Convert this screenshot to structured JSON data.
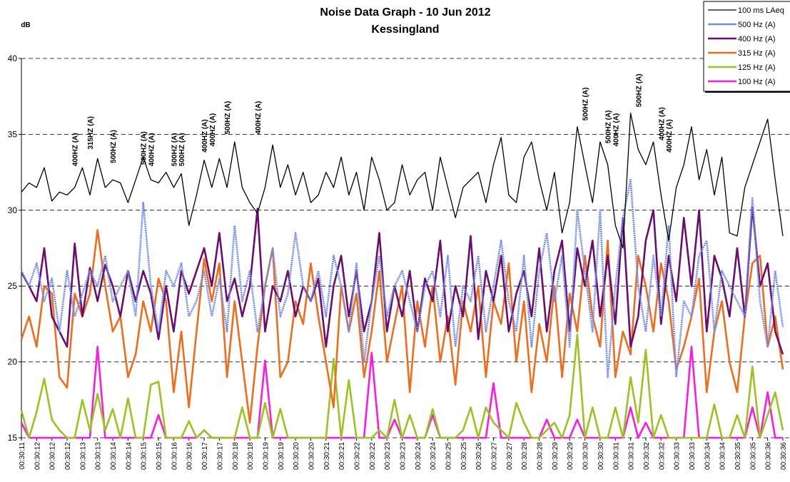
{
  "chart_data": {
    "type": "line",
    "title": "Noise Data Graph - 10 Jun 2012",
    "subtitle": "Kessingland",
    "y_label": "dB",
    "ylim": [
      15,
      40
    ],
    "yticks": [
      15,
      20,
      25,
      30,
      35,
      40
    ],
    "grid": true,
    "legend": "top-right",
    "categories": [
      "00:30:11",
      null,
      "00:30:12",
      null,
      "00:30:12",
      null,
      "00:30:12",
      null,
      "00:30:13",
      null,
      "00:30:13",
      null,
      "00:30:14",
      null,
      "00:30:14",
      null,
      "00:30:15",
      null,
      "00:30:15",
      null,
      "00:30:16",
      null,
      "00:30:16",
      null,
      "00:30:17",
      null,
      "00:30:17",
      null,
      "00:30:18",
      null,
      "00:30:18",
      null,
      "00:30:19",
      null,
      "00:30:19",
      null,
      "00:30:20",
      null,
      "00:30:20",
      null,
      "00:30:21",
      null,
      "00:30:21",
      null,
      "00:30:22",
      null,
      "00:30:22",
      null,
      "00:30:23",
      null,
      "00:30:23",
      null,
      "00:30:24",
      null,
      "00:30:24",
      null,
      "00:30:25",
      null,
      "00:30:25",
      null,
      "00:30:26",
      null,
      "00:30:27",
      null,
      "00:30:27",
      null,
      "00:30:28",
      null,
      "00:30:28",
      null,
      "00:30:29",
      null,
      "00:30:29",
      null,
      "00:30:30",
      null,
      "00:30:30",
      null,
      "00:30:31",
      null,
      "00:30:31",
      null,
      "00:30:32",
      null,
      "00:30:32",
      null,
      "00:30:33",
      null,
      "00:30:33",
      null,
      "00:30:34",
      null,
      "00:30:34",
      null,
      "00:30:35",
      null,
      "00:30:35",
      null,
      "00:30:36",
      null,
      "00:30:36"
    ],
    "series": [
      {
        "name": "100 ms LAeq",
        "color": "#000000",
        "values": [
          31.2,
          31.8,
          31.5,
          32.8,
          30.6,
          31.2,
          31.0,
          31.5,
          32.8,
          31.0,
          33.4,
          31.5,
          32.0,
          31.8,
          30.5,
          32.0,
          33.5,
          32.0,
          31.8,
          32.5,
          31.5,
          32.4,
          29.0,
          31.0,
          33.3,
          31.5,
          33.4,
          31.5,
          34.5,
          31.5,
          30.5,
          29.8,
          31.5,
          34.3,
          31.5,
          33.0,
          31.0,
          32.5,
          30.5,
          31.0,
          32.5,
          31.5,
          33.5,
          31.0,
          32.5,
          30.0,
          33.5,
          32.0,
          30.0,
          30.5,
          33.0,
          31.0,
          32.0,
          32.5,
          30.0,
          33.5,
          31.5,
          29.5,
          31.5,
          32.0,
          32.5,
          30.5,
          33.0,
          34.8,
          31.0,
          30.5,
          33.5,
          34.5,
          32.0,
          30.0,
          32.5,
          28.5,
          30.5,
          35.5,
          33.0,
          30.5,
          34.5,
          33.0,
          29.0,
          27.5,
          36.4,
          34.0,
          33.0,
          34.5,
          31.0,
          28.0,
          31.5,
          33.0,
          35.5,
          32.0,
          34.0,
          31.0,
          33.5,
          28.5,
          28.3,
          31.5,
          33.0,
          34.5,
          36.0,
          32.0,
          28.3
        ]
      },
      {
        "name": "500 Hz (A)",
        "color": "#6f8cf2",
        "values": [
          26,
          25,
          26.5,
          24,
          25.5,
          22,
          26,
          23,
          24.5,
          26,
          25,
          27,
          24,
          25,
          26,
          23,
          30.5,
          25,
          22,
          26,
          25,
          26.5,
          23,
          24,
          26,
          23,
          25.5,
          22,
          29,
          24,
          26,
          22,
          25,
          27.5,
          23,
          24.5,
          28.5,
          25,
          24,
          26,
          23,
          27,
          25,
          22,
          26.5,
          20,
          24,
          27,
          23,
          25,
          26,
          24,
          22,
          25,
          26,
          23,
          27,
          21,
          25,
          24,
          27,
          22,
          25,
          28,
          24,
          22,
          27,
          21,
          26,
          28.5,
          24,
          27,
          21,
          30,
          26,
          22,
          30,
          19,
          25,
          29.5,
          32,
          25,
          22,
          27,
          23,
          29,
          19,
          24,
          23,
          27,
          28,
          22,
          26,
          25,
          24,
          23,
          30.8,
          24,
          21,
          26,
          22.3
        ]
      },
      {
        "name": "400 Hz (A)",
        "color": "#6a0d6e",
        "values": [
          25.9,
          25,
          24,
          27.5,
          23,
          22,
          21,
          27.8,
          23,
          26.2,
          24,
          26.4,
          25,
          23,
          26,
          24,
          26,
          24.5,
          21.5,
          25,
          22,
          26,
          24.5,
          26,
          27.5,
          25,
          28.5,
          24,
          25.5,
          23,
          25,
          30.1,
          22,
          25,
          24,
          26,
          23,
          25,
          24,
          25.5,
          21,
          25,
          27,
          23,
          26,
          22,
          24,
          28.5,
          22,
          25,
          23,
          26,
          22,
          25.5,
          24,
          28,
          22,
          25,
          23,
          28.3,
          21.5,
          26,
          24,
          27,
          22,
          24.5,
          26,
          23,
          27.5,
          22,
          26,
          28,
          22,
          27.5,
          25,
          28,
          23,
          27,
          22.5,
          29.5,
          21,
          23,
          28,
          30,
          22.5,
          27,
          24,
          29.5,
          25,
          30,
          22,
          27,
          25.5,
          23,
          27.5,
          23,
          30.2,
          25,
          26.5,
          22,
          20.5
        ]
      },
      {
        "name": "315 Hz (A)",
        "color": "#f26b18",
        "values": [
          21.5,
          23,
          21,
          25,
          24.5,
          19,
          18.3,
          24.5,
          23,
          24.5,
          28.7,
          25,
          22,
          23,
          19,
          20.5,
          24,
          22,
          25.5,
          24,
          18,
          22,
          17,
          22,
          26.8,
          24,
          26.5,
          19,
          24,
          20,
          16,
          21,
          25,
          27.5,
          19,
          20,
          24,
          22.5,
          26.5,
          23,
          20,
          17,
          25,
          22,
          24.5,
          19,
          22,
          26,
          20,
          22.5,
          25,
          18,
          24,
          21,
          25,
          20,
          23,
          18.5,
          24,
          22,
          25,
          19,
          24,
          22.5,
          26.5,
          20,
          24,
          18,
          22.5,
          20,
          25,
          19,
          24.5,
          22,
          27,
          23,
          21,
          28,
          19,
          22,
          20.5,
          27,
          25,
          22,
          26.5,
          24,
          19.5,
          21,
          23,
          25.5,
          18,
          22,
          24,
          20,
          18,
          23,
          26.5,
          27,
          21,
          23,
          19.5
        ]
      },
      {
        "name": "125 Hz (A)",
        "color": "#99c41c",
        "values": [
          16.8,
          15,
          16.7,
          18.9,
          16.2,
          15.5,
          15,
          15,
          17.5,
          15.5,
          17.9,
          15.5,
          16.9,
          15,
          17.6,
          15,
          15,
          18.5,
          18.7,
          15,
          15,
          15,
          16.1,
          15,
          15.5,
          15,
          15,
          15,
          15,
          17,
          15,
          15,
          17.3,
          15,
          16.9,
          15,
          15,
          15,
          15,
          15,
          15,
          20.2,
          15,
          18.8,
          15,
          15,
          15,
          15.5,
          15,
          17.5,
          15,
          16.5,
          15,
          15,
          16.9,
          15,
          15,
          15,
          15.5,
          17,
          15,
          17,
          16,
          15.5,
          15,
          17.3,
          16,
          15,
          15,
          15.5,
          16,
          15,
          16.5,
          21.8,
          15,
          17,
          15,
          15,
          17,
          15,
          19,
          16,
          20.8,
          15,
          16.5,
          15,
          15,
          15,
          15,
          15,
          15,
          17.2,
          15,
          15,
          16.5,
          15,
          19.7,
          15,
          16.5,
          18,
          15.5
        ]
      },
      {
        "name": "100 Hz (A)",
        "color": "#ff1adb",
        "values": [
          16,
          15,
          15,
          15,
          15,
          15,
          15,
          15,
          15,
          15,
          21,
          15,
          15,
          15,
          15,
          15,
          15,
          15,
          16.5,
          15,
          15,
          15,
          15,
          15,
          15.5,
          15,
          15,
          15,
          15,
          15,
          15,
          15,
          20.1,
          15,
          15,
          15,
          15,
          15,
          15,
          15,
          15,
          15,
          15,
          15,
          15,
          15,
          20.6,
          15,
          15,
          16.2,
          15,
          15,
          15,
          15,
          16.5,
          15,
          15,
          15,
          15,
          15,
          15,
          15,
          18.6,
          15,
          15,
          15,
          15,
          15,
          15,
          16.2,
          15,
          15,
          15,
          16.2,
          15,
          15,
          15,
          15,
          15,
          15,
          17,
          15,
          16,
          15,
          15,
          15,
          15,
          15,
          21,
          15,
          15,
          15,
          15,
          15,
          15,
          15,
          17,
          15,
          18,
          15,
          15
        ]
      }
    ],
    "annotations": [
      {
        "text": "400HZ (A)",
        "x": 7,
        "y": 32.9
      },
      {
        "text": "315HZ (A)",
        "x": 9,
        "y": 34
      },
      {
        "text": "500HZ (A)",
        "x": 12,
        "y": 33.1
      },
      {
        "text": "500HZ (A)",
        "x": 16,
        "y": 33
      },
      {
        "text": "400HZ (A)",
        "x": 17,
        "y": 32.9
      },
      {
        "text": "500HZ (A)",
        "x": 20,
        "y": 32.9
      },
      {
        "text": "500HZ (A)",
        "x": 21,
        "y": 32.9
      },
      {
        "text": "400HZ (A)",
        "x": 24,
        "y": 33.8
      },
      {
        "text": "400HZ (A)",
        "x": 25,
        "y": 34.2
      },
      {
        "text": "500HZ (A)",
        "x": 27,
        "y": 35
      },
      {
        "text": "400HZ (A)",
        "x": 31,
        "y": 35
      },
      {
        "text": "500HZ (A)",
        "x": 74,
        "y": 35.9
      },
      {
        "text": "500HZ (A)",
        "x": 77,
        "y": 34.4
      },
      {
        "text": "400HZ (A)",
        "x": 78,
        "y": 34.2
      },
      {
        "text": "500HZ (A)",
        "x": 81,
        "y": 36.8
      },
      {
        "text": "400HZ (A)",
        "x": 84,
        "y": 34.6
      },
      {
        "text": "400HZ (A)",
        "x": 85,
        "y": 33.8
      }
    ]
  }
}
